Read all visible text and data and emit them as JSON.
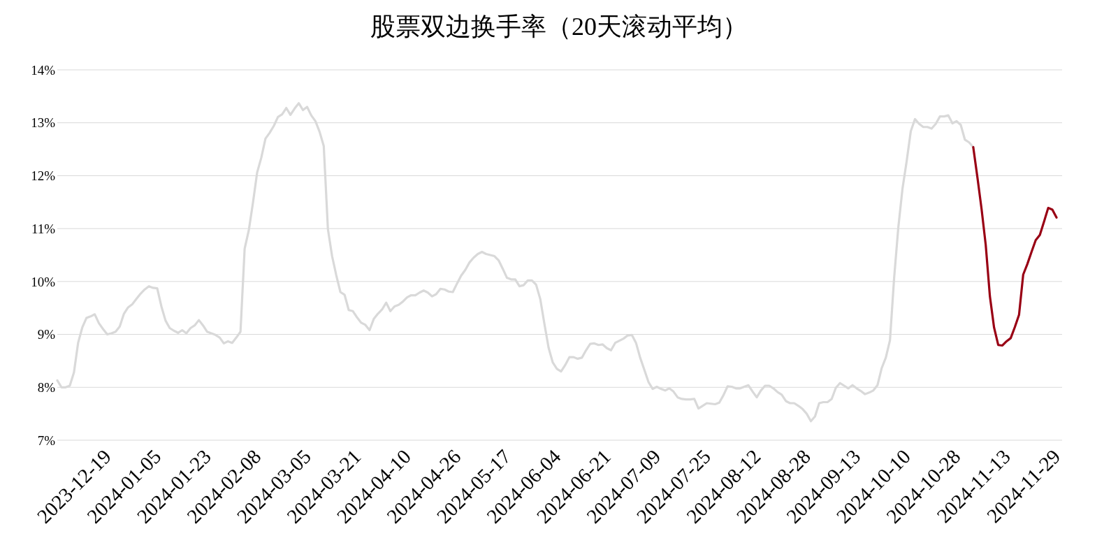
{
  "chart_data": {
    "type": "line",
    "title": "股票双边换手率（20天滚动平均）",
    "categories": [
      null,
      null,
      null,
      null,
      null,
      null,
      null,
      null,
      null,
      null,
      null,
      null,
      "2023-12-19",
      null,
      null,
      null,
      null,
      null,
      null,
      null,
      null,
      null,
      null,
      null,
      "2024-01-05",
      null,
      null,
      null,
      null,
      null,
      null,
      null,
      null,
      null,
      null,
      null,
      "2024-01-23",
      null,
      null,
      null,
      null,
      null,
      null,
      null,
      null,
      null,
      null,
      null,
      "2024-02-08",
      null,
      null,
      null,
      null,
      null,
      null,
      null,
      null,
      null,
      null,
      null,
      "2024-03-05",
      null,
      null,
      null,
      null,
      null,
      null,
      null,
      null,
      null,
      null,
      null,
      "2024-03-21",
      null,
      null,
      null,
      null,
      null,
      null,
      null,
      null,
      null,
      null,
      null,
      "2024-04-10",
      null,
      null,
      null,
      null,
      null,
      null,
      null,
      null,
      null,
      null,
      null,
      "2024-04-26",
      null,
      null,
      null,
      null,
      null,
      null,
      null,
      null,
      null,
      null,
      null,
      "2024-05-17",
      null,
      null,
      null,
      null,
      null,
      null,
      null,
      null,
      null,
      null,
      null,
      "2024-06-04",
      null,
      null,
      null,
      null,
      null,
      null,
      null,
      null,
      null,
      null,
      null,
      "2024-06-21",
      null,
      null,
      null,
      null,
      null,
      null,
      null,
      null,
      null,
      null,
      null,
      "2024-07-09",
      null,
      null,
      null,
      null,
      null,
      null,
      null,
      null,
      null,
      null,
      null,
      "2024-07-25",
      null,
      null,
      null,
      null,
      null,
      null,
      null,
      null,
      null,
      null,
      null,
      "2024-08-12",
      null,
      null,
      null,
      null,
      null,
      null,
      null,
      null,
      null,
      null,
      null,
      "2024-08-28",
      null,
      null,
      null,
      null,
      null,
      null,
      null,
      null,
      null,
      null,
      null,
      "2024-09-13",
      null,
      null,
      null,
      null,
      null,
      null,
      null,
      null,
      null,
      null,
      null,
      "2024-10-10",
      null,
      null,
      null,
      null,
      null,
      null,
      null,
      null,
      null,
      null,
      null,
      "2024-10-28",
      null,
      null,
      null,
      null,
      null,
      null,
      null,
      null,
      null,
      null,
      null,
      "2024-11-13",
      null,
      null,
      null,
      null,
      null,
      null,
      null,
      null,
      null,
      null,
      null,
      "2024-11-29"
    ],
    "series": [
      {
        "color": "#d9d9d9",
        "values": [
          8.13,
          8.0,
          8.0,
          8.03,
          8.28,
          8.84,
          9.13,
          9.31,
          9.34,
          9.38,
          9.21,
          9.1,
          9.0,
          9.02,
          9.05,
          9.15,
          9.39,
          9.51,
          9.57,
          9.67,
          9.77,
          9.85,
          9.91,
          9.88,
          9.87,
          9.53,
          9.26,
          9.12,
          9.07,
          9.03,
          9.08,
          9.02,
          9.12,
          9.17,
          9.27,
          9.17,
          9.05,
          9.02,
          8.99,
          8.94,
          8.83,
          8.87,
          8.84,
          8.94,
          9.05,
          10.62,
          10.97,
          11.49,
          12.06,
          12.34,
          12.7,
          12.81,
          12.94,
          13.11,
          13.16,
          13.28,
          13.15,
          13.27,
          13.37,
          13.24,
          13.3,
          13.14,
          13.03,
          12.83,
          12.56,
          10.99,
          10.48,
          10.12,
          9.8,
          9.75,
          9.46,
          9.44,
          9.32,
          9.22,
          9.18,
          9.08,
          9.29,
          9.39,
          9.47,
          9.6,
          9.44,
          9.53,
          9.56,
          9.62,
          9.7,
          9.74,
          9.74,
          9.79,
          9.83,
          9.79,
          9.72,
          9.76,
          9.86,
          9.85,
          9.81,
          9.8,
          9.96,
          10.11,
          10.22,
          10.36,
          10.45,
          10.52,
          10.56,
          10.52,
          10.5,
          10.48,
          10.4,
          10.24,
          10.07,
          10.04,
          10.04,
          9.91,
          9.93,
          10.02,
          10.02,
          9.94,
          9.67,
          9.2,
          8.75,
          8.47,
          8.35,
          8.3,
          8.42,
          8.57,
          8.57,
          8.54,
          8.56,
          8.7,
          8.82,
          8.83,
          8.8,
          8.81,
          8.74,
          8.7,
          8.84,
          8.88,
          8.92,
          8.98,
          8.99,
          8.84,
          8.56,
          8.33,
          8.1,
          7.97,
          8.01,
          7.97,
          7.94,
          7.98,
          7.92,
          7.81,
          7.78,
          7.77,
          7.77,
          7.78,
          7.6,
          7.65,
          7.7,
          7.69,
          7.68,
          7.71,
          7.85,
          8.02,
          8.01,
          7.98,
          7.98,
          8.01,
          8.04,
          7.92,
          7.81,
          7.94,
          8.03,
          8.03,
          7.98,
          7.91,
          7.86,
          7.74,
          7.7,
          7.7,
          7.65,
          7.59,
          7.5,
          7.36,
          7.45,
          7.7,
          7.72,
          7.72,
          7.78,
          7.99,
          8.08,
          8.03,
          7.98,
          8.04,
          7.98,
          7.93,
          7.87,
          7.9,
          7.94,
          8.04,
          8.36,
          8.56,
          8.89,
          10.07,
          11.02,
          11.75,
          12.27,
          12.84,
          13.07,
          12.98,
          12.92,
          12.92,
          12.89,
          12.98,
          13.12,
          13.12,
          13.14,
          12.99,
          13.03,
          12.96,
          12.68,
          12.63,
          12.54,
          null,
          null,
          null,
          null,
          null,
          null,
          null,
          null,
          null,
          null,
          null,
          null,
          null,
          null,
          null,
          null,
          null,
          null,
          null,
          null
        ]
      },
      {
        "color": "#990014",
        "values": [
          null,
          null,
          null,
          null,
          null,
          null,
          null,
          null,
          null,
          null,
          null,
          null,
          null,
          null,
          null,
          null,
          null,
          null,
          null,
          null,
          null,
          null,
          null,
          null,
          null,
          null,
          null,
          null,
          null,
          null,
          null,
          null,
          null,
          null,
          null,
          null,
          null,
          null,
          null,
          null,
          null,
          null,
          null,
          null,
          null,
          null,
          null,
          null,
          null,
          null,
          null,
          null,
          null,
          null,
          null,
          null,
          null,
          null,
          null,
          null,
          null,
          null,
          null,
          null,
          null,
          null,
          null,
          null,
          null,
          null,
          null,
          null,
          null,
          null,
          null,
          null,
          null,
          null,
          null,
          null,
          null,
          null,
          null,
          null,
          null,
          null,
          null,
          null,
          null,
          null,
          null,
          null,
          null,
          null,
          null,
          null,
          null,
          null,
          null,
          null,
          null,
          null,
          null,
          null,
          null,
          null,
          null,
          null,
          null,
          null,
          null,
          null,
          null,
          null,
          null,
          null,
          null,
          null,
          null,
          null,
          null,
          null,
          null,
          null,
          null,
          null,
          null,
          null,
          null,
          null,
          null,
          null,
          null,
          null,
          null,
          null,
          null,
          null,
          null,
          null,
          null,
          null,
          null,
          null,
          null,
          null,
          null,
          null,
          null,
          null,
          null,
          null,
          null,
          null,
          null,
          null,
          null,
          null,
          null,
          null,
          null,
          null,
          null,
          null,
          null,
          null,
          null,
          null,
          null,
          null,
          null,
          null,
          null,
          null,
          null,
          null,
          null,
          null,
          null,
          null,
          null,
          null,
          null,
          null,
          null,
          null,
          null,
          null,
          null,
          null,
          null,
          null,
          null,
          null,
          null,
          null,
          null,
          null,
          null,
          null,
          null,
          null,
          null,
          null,
          null,
          null,
          null,
          null,
          null,
          null,
          null,
          null,
          null,
          null,
          null,
          null,
          null,
          null,
          null,
          null,
          12.54,
          11.97,
          11.37,
          10.69,
          9.72,
          9.13,
          8.8,
          8.79,
          8.87,
          8.93,
          9.14,
          9.37,
          10.13,
          10.33,
          10.56,
          10.78,
          10.88,
          11.13,
          11.39,
          11.36,
          11.21
        ]
      }
    ],
    "ylim": [
      7,
      14
    ],
    "yticks": [
      {
        "value": 7,
        "label": "7%"
      },
      {
        "value": 8,
        "label": "8%"
      },
      {
        "value": 9,
        "label": "9%"
      },
      {
        "value": 10,
        "label": "10%"
      },
      {
        "value": 11,
        "label": "11%"
      },
      {
        "value": 12,
        "label": "12%"
      },
      {
        "value": 13,
        "label": "13%"
      },
      {
        "value": 14,
        "label": "14%"
      }
    ],
    "grid": "y"
  }
}
